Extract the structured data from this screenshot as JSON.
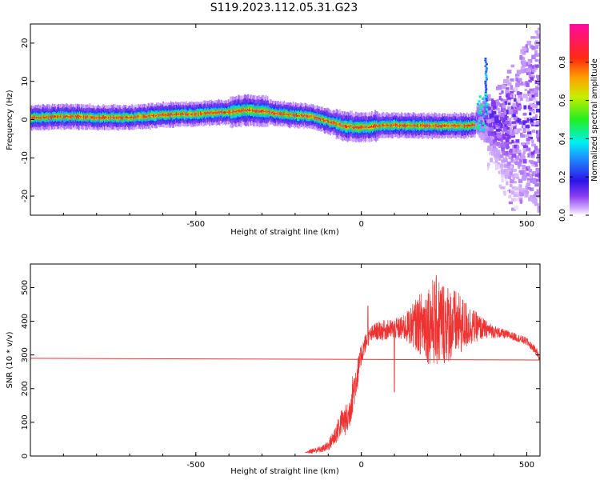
{
  "title": "S119.2023.112.05.31.G23",
  "colors": {
    "snr_line": "#ee3333",
    "snr_fill": "#ee3333",
    "axis": "#000000",
    "background": "#ffffff"
  },
  "colorbar": {
    "label": "Normalized spectral amplitude",
    "ticks": [
      "0.0",
      "0.2",
      "0.4",
      "0.6",
      "0.8"
    ],
    "tick_values": [
      0.0,
      0.2,
      0.4,
      0.6,
      0.8
    ],
    "range": [
      0,
      1
    ],
    "colormap": "rainbow (white-purple-blue-cyan-green-yellow-orange-red-magenta)"
  },
  "chart_data": [
    {
      "type": "heatmap",
      "title": "",
      "xlabel": "Height of straight line (km)",
      "ylabel": "Frequency (Hz)",
      "xlim": [
        -1000,
        540
      ],
      "ylim": [
        -25,
        25
      ],
      "x_ticks": [
        -500,
        0,
        500
      ],
      "x_tick_labels": [
        "-500",
        "0",
        "500"
      ],
      "y_ticks": [
        -20,
        -10,
        0,
        10,
        20
      ],
      "y_tick_labels": [
        "-20",
        "-10",
        "0",
        "10",
        "20"
      ],
      "ridge": {
        "x": [
          -1000,
          -900,
          -800,
          -700,
          -600,
          -500,
          -400,
          -340,
          -300,
          -250,
          -200,
          -150,
          -100,
          -60,
          -20,
          0,
          30,
          60,
          100,
          150,
          200,
          250,
          300,
          330,
          345
        ],
        "y": [
          0.5,
          0.8,
          0.6,
          0.5,
          1.2,
          1.5,
          2.0,
          2.5,
          2.2,
          1.5,
          1.2,
          0.8,
          -0.5,
          -1.5,
          -2.0,
          -2.0,
          -1.8,
          -1.5,
          -1.5,
          -1.6,
          -1.6,
          -1.6,
          -1.6,
          -1.6,
          -1.5
        ]
      },
      "scatter_region": {
        "x": [
          345,
          540
        ],
        "y": [
          -25,
          25
        ],
        "spike_x": 377,
        "spike_y": 16
      }
    },
    {
      "type": "line",
      "title": "",
      "xlabel": "Height of straight line (km)",
      "ylabel": "SNR (10 * v/v)",
      "xlim": [
        -1000,
        540
      ],
      "ylim": [
        0,
        570
      ],
      "x_ticks": [
        -500,
        0,
        500
      ],
      "x_tick_labels": [
        "-500",
        "0",
        "500"
      ],
      "y_ticks": [
        0,
        100,
        200,
        300,
        400,
        500
      ],
      "y_tick_labels": [
        "0",
        "100",
        "200",
        "300",
        "400",
        "500"
      ],
      "reference_line": {
        "y_start": 290,
        "y_end": 285
      },
      "series": [
        {
          "x": [
            -170,
            -150,
            -120,
            -100,
            -80,
            -60,
            -40,
            -25,
            -15,
            -5,
            0,
            10,
            20,
            30,
            40,
            60,
            80,
            100,
            130,
            160,
            200,
            230,
            260,
            300,
            340,
            380,
            420,
            460,
            500,
            530,
            540
          ],
          "y": [
            10,
            15,
            20,
            30,
            60,
            100,
            110,
            190,
            230,
            270,
            300,
            330,
            350,
            360,
            370,
            372,
            375,
            378,
            380,
            390,
            395,
            400,
            395,
            390,
            385,
            375,
            365,
            355,
            340,
            310,
            285
          ],
          "noise": [
            0,
            8,
            10,
            15,
            30,
            40,
            50,
            60,
            55,
            40,
            35,
            30,
            25,
            25,
            25,
            30,
            30,
            30,
            40,
            70,
            120,
            140,
            120,
            90,
            50,
            25,
            15,
            12,
            12,
            12,
            10
          ]
        }
      ]
    }
  ]
}
